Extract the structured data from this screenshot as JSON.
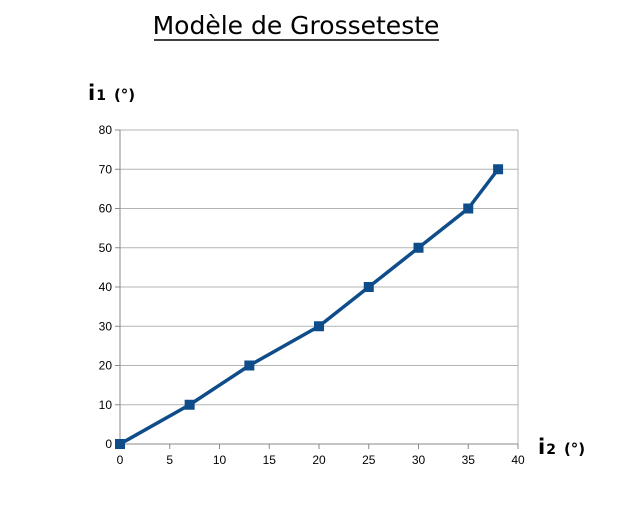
{
  "chart_data": {
    "type": "line",
    "title": "Modèle de Grosseteste",
    "xlabel": {
      "main": "i",
      "sub": "2",
      "unit": "(°)"
    },
    "ylabel": {
      "main": "i",
      "sub": "1",
      "unit": "(°)"
    },
    "xlim": [
      0,
      40
    ],
    "ylim": [
      0,
      80
    ],
    "x_ticks": [
      "0",
      "5",
      "10",
      "15",
      "20",
      "25",
      "30",
      "35",
      "40"
    ],
    "y_ticks": [
      "0",
      "10",
      "20",
      "30",
      "40",
      "50",
      "60",
      "70",
      "80"
    ],
    "grid": true,
    "legend": false,
    "series": [
      {
        "color": "#0f4d8a",
        "marker": "square",
        "points": [
          {
            "x": 0,
            "y": 0
          },
          {
            "x": 7,
            "y": 10
          },
          {
            "x": 13,
            "y": 20
          },
          {
            "x": 20,
            "y": 30
          },
          {
            "x": 25,
            "y": 40
          },
          {
            "x": 30,
            "y": 50
          },
          {
            "x": 35,
            "y": 60
          },
          {
            "x": 38,
            "y": 70
          }
        ]
      }
    ]
  }
}
